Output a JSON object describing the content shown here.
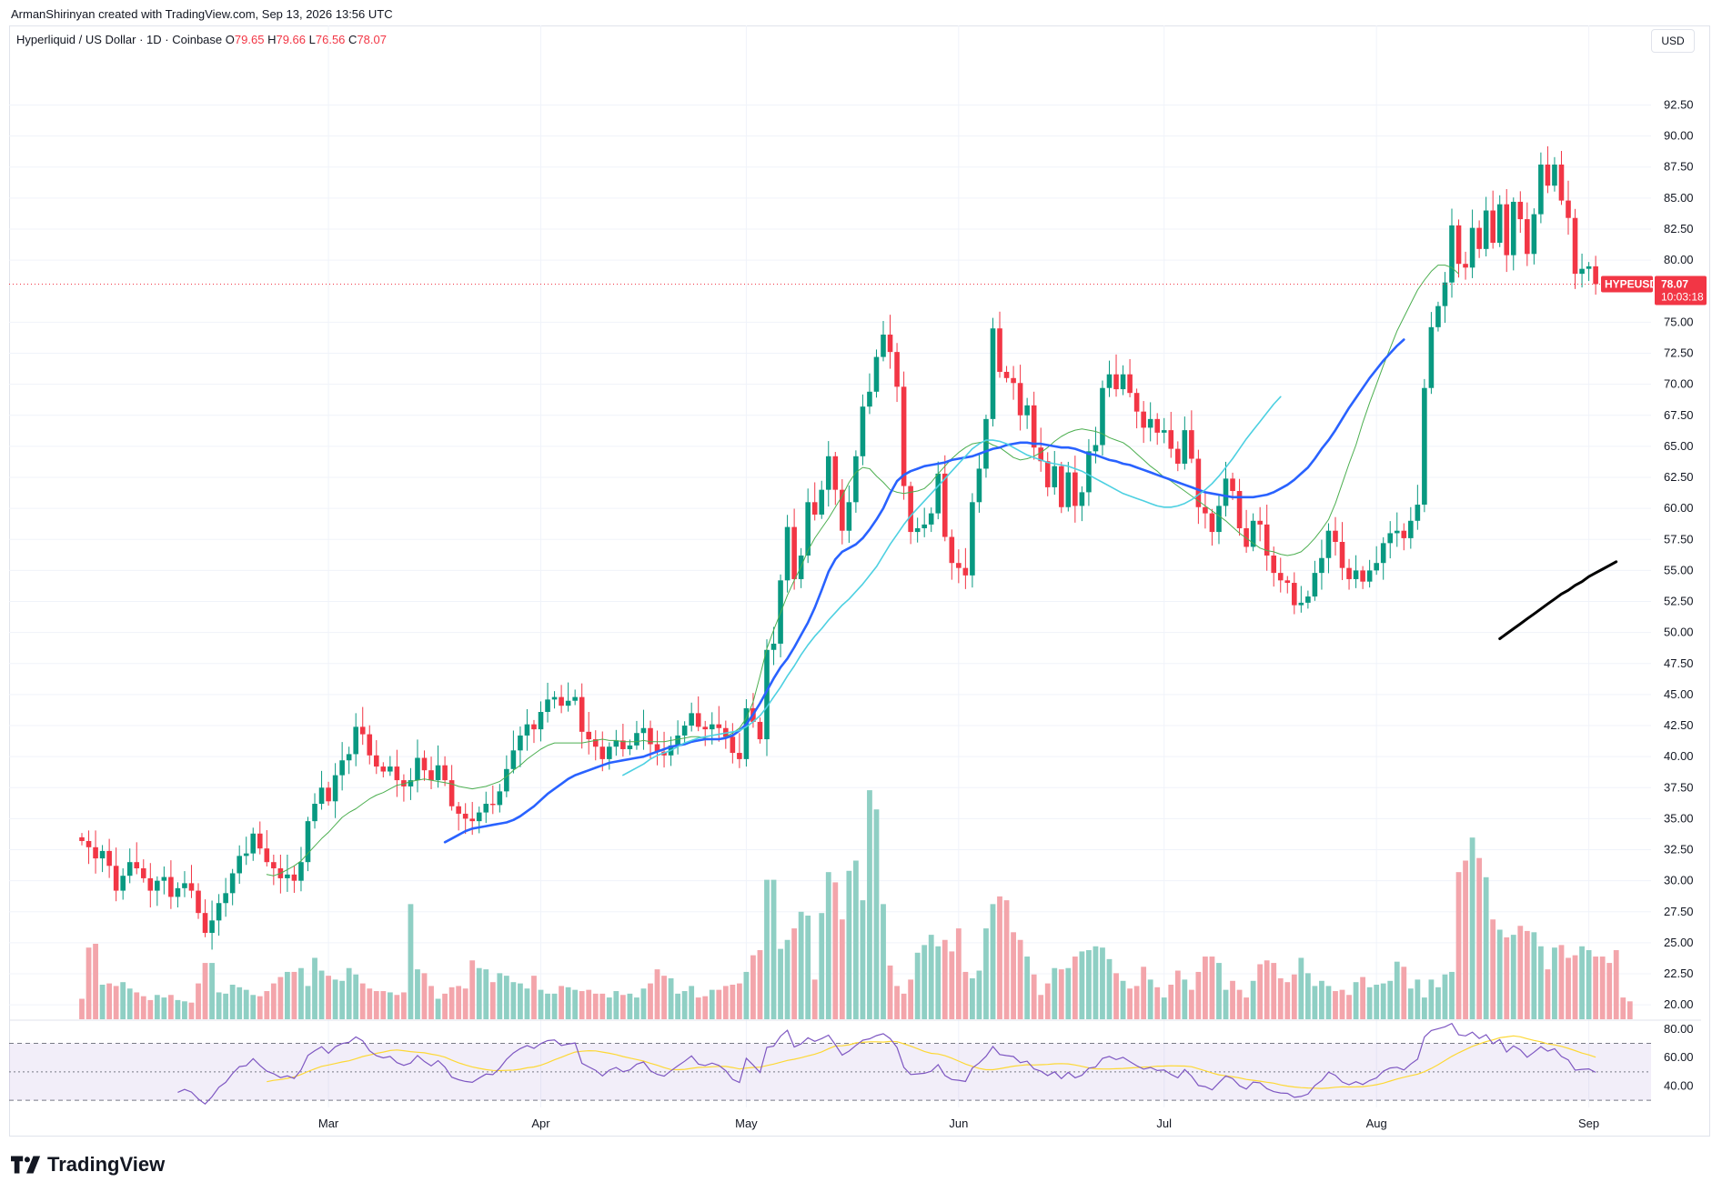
{
  "header": {
    "credit": "ArmanShirinyan created with TradingView.com, Sep 13, 2026 13:56 UTC",
    "symbol_desc": "Hyperliquid / US Dollar · 1D · Coinbase",
    "o_label": "O",
    "o_value": "79.65",
    "h_label": "H",
    "h_value": "79.66",
    "l_label": "L",
    "l_value": "76.56",
    "c_label": "C",
    "c_value": "78.07",
    "currency": "USD"
  },
  "price_tag": {
    "ticker": "HYPEUSD",
    "price": "78.07",
    "countdown": "10:03:18"
  },
  "footer": {
    "brand": "TradingView"
  },
  "colors": {
    "up": "#089981",
    "down": "#f23645",
    "vol_up": "#8fcfc4",
    "vol_down": "#f3a5ab",
    "ma_thin": "#4caf50",
    "ma_blue": "#2962ff",
    "ma_cyan": "#4dd0e1",
    "rsi": "#7e57c2",
    "rsi_ma": "#fdd835"
  },
  "chart_data": {
    "type": "candlestick",
    "price_axis": {
      "ticks": [
        "92.50",
        "90.00",
        "87.50",
        "85.00",
        "82.50",
        "80.00",
        "75.00",
        "72.50",
        "70.00",
        "67.50",
        "65.00",
        "62.50",
        "60.00",
        "57.50",
        "55.00",
        "52.50",
        "50.00",
        "47.50",
        "45.00",
        "42.50",
        "40.00",
        "37.50",
        "35.00",
        "32.50",
        "30.00",
        "27.50",
        "25.00",
        "22.50",
        "20.00"
      ],
      "range": [
        19.5,
        94
      ]
    },
    "rsi_axis": {
      "ticks": [
        "80.00",
        "60.00",
        "40.00"
      ],
      "band": [
        30,
        70
      ],
      "range": [
        25,
        85
      ]
    },
    "time_axis": [
      {
        "label": "Mar",
        "index": 36
      },
      {
        "label": "Apr",
        "index": 67
      },
      {
        "label": "May",
        "index": 97
      },
      {
        "label": "Jun",
        "index": 128
      },
      {
        "label": "Jul",
        "index": 158
      },
      {
        "label": "Aug",
        "index": 189
      },
      {
        "label": "Sep",
        "index": 220
      }
    ],
    "last_close": 78.07,
    "closes": [
      33.2,
      32.7,
      31.8,
      32.4,
      31.2,
      29.2,
      30.4,
      31.5,
      31.0,
      30.2,
      29.2,
      30.0,
      30.3,
      28.7,
      29.4,
      29.8,
      29.2,
      27.4,
      25.8,
      26.8,
      28.2,
      29.0,
      30.6,
      32.0,
      32.2,
      33.8,
      32.6,
      31.5,
      31.0,
      30.2,
      30.5,
      30.0,
      31.5,
      34.8,
      36.2,
      37.5,
      36.4,
      38.5,
      39.7,
      40.2,
      42.4,
      41.8,
      40.1,
      39.2,
      38.8,
      39.2,
      38.1,
      37.6,
      38.1,
      39.9,
      38.9,
      38.1,
      39.3,
      38.1,
      36.0,
      35.4,
      35.0,
      34.8,
      35.5,
      36.2,
      36.1,
      37.2,
      39.0,
      40.5,
      41.7,
      42.6,
      42.2,
      43.6,
      44.6,
      44.8,
      44.1,
      44.5,
      44.8,
      42.0,
      41.4,
      40.8,
      39.8,
      40.8,
      41.3,
      40.6,
      40.9,
      41.9,
      42.3,
      41.0,
      40.4,
      40.1,
      40.9,
      41.7,
      42.5,
      43.5,
      42.4,
      42.2,
      42.6,
      42.3,
      41.6,
      40.3,
      39.8,
      43.9,
      42.8,
      41.4,
      48.6,
      49.1,
      54.2,
      58.5,
      54.3,
      56.2,
      60.5,
      59.5,
      61.5,
      64.2,
      61.5,
      58.2,
      60.5,
      64.2,
      68.2,
      69.4,
      72.2,
      74.0,
      72.6,
      69.8,
      61.8,
      58.1,
      58.4,
      58.7,
      59.6,
      62.8,
      57.7,
      55.6,
      55.2,
      54.6,
      60.5,
      63.2,
      67.2,
      74.5,
      71.0,
      70.5,
      70.1,
      67.5,
      68.3,
      64.9,
      63.8,
      61.7,
      63.4,
      60.1,
      62.9,
      60.2,
      61.3,
      64.6,
      65.1,
      69.7,
      70.8,
      69.6,
      70.8,
      69.3,
      67.8,
      66.5,
      67.2,
      66.1,
      66.3,
      64.8,
      63.6,
      66.3,
      64.0,
      60.1,
      59.6,
      58.1,
      60.2,
      62.4,
      61.4,
      58.4,
      56.9,
      59.0,
      58.7,
      56.2,
      54.8,
      54.2,
      54.0,
      52.2,
      52.4,
      52.9,
      54.8,
      56.0,
      58.2,
      57.3,
      55.2,
      54.3,
      55.0,
      54.1,
      55.0,
      55.6,
      57.2,
      58.0,
      58.2,
      57.6,
      59.0,
      60.3,
      69.7,
      74.6,
      76.3,
      78.2,
      82.8,
      79.7,
      79.4,
      82.6,
      80.9,
      84.0,
      81.4,
      84.5,
      80.4,
      84.7,
      83.3,
      80.5,
      83.7,
      87.7,
      86.0,
      87.7,
      84.8,
      83.4,
      78.9,
      79.3,
      79.5,
      78.07
    ],
    "volumes": [
      20.8,
      24.8,
      25.1,
      21.9,
      22.0,
      21.8,
      22.1,
      21.6,
      21.3,
      21.0,
      20.7,
      21.1,
      20.9,
      21.1,
      20.7,
      20.6,
      20.5,
      22.0,
      23.6,
      23.6,
      21.3,
      21.2,
      21.9,
      21.7,
      21.5,
      21.1,
      21.0,
      21.4,
      22.0,
      22.5,
      22.9,
      22.9,
      23.2,
      21.8,
      24.0,
      23.0,
      22.6,
      22.3,
      22.2,
      23.2,
      22.7,
      22.0,
      21.6,
      21.4,
      21.4,
      21.3,
      21.1,
      21.3,
      28.2,
      23.1,
      22.8,
      21.8,
      20.8,
      21.2,
      21.7,
      21.8,
      21.6,
      23.8,
      23.2,
      23.1,
      22.1,
      22.8,
      22.6,
      22.1,
      22.0,
      21.6,
      22.6,
      21.5,
      21.2,
      21.2,
      21.8,
      21.7,
      21.5,
      21.4,
      21.5,
      21.2,
      21.2,
      20.9,
      21.4,
      21.1,
      21.2,
      20.9,
      21.6,
      22.0,
      23.1,
      22.6,
      22.4,
      21.2,
      21.4,
      21.8,
      20.9,
      21.0,
      21.5,
      21.5,
      21.8,
      21.9,
      22.0,
      22.9,
      24.2,
      24.6,
      30.1,
      30.1,
      24.7,
      25.4,
      26.3,
      27.6,
      27.3,
      22.3,
      27.5,
      30.7,
      29.9,
      27.0,
      30.8,
      31.6,
      28.5,
      37.1,
      35.6,
      28.2,
      23.4,
      21.8,
      21.2,
      22.3,
      24.4,
      25.0,
      25.8,
      24.9,
      25.4,
      24.5,
      26.3,
      22.9,
      22.4,
      23.0,
      26.3,
      28.2,
      28.8,
      28.5,
      26.0,
      25.4,
      24.1,
      22.7,
      21.1,
      22.0,
      23.2,
      23.1,
      23.2,
      24.1,
      24.5,
      24.6,
      24.9,
      24.8,
      23.9,
      22.8,
      22.2,
      21.6,
      21.8,
      23.3,
      22.3,
      21.7,
      20.9,
      21.9,
      23.0,
      22.3,
      21.5,
      22.9,
      24.1,
      24.1,
      23.6,
      21.5,
      22.2,
      21.5,
      20.9,
      22.2,
      23.5,
      23.8,
      23.6,
      22.4,
      22.1,
      22.7,
      24.0,
      22.8,
      21.8,
      22.2,
      21.8,
      21.4,
      21.5,
      21.1,
      22.1,
      22.5,
      21.7,
      21.9,
      22.0,
      22.2,
      23.7,
      23.3,
      21.6,
      22.3,
      20.9,
      22.3,
      21.7,
      22.7,
      22.9,
      30.7,
      31.6,
      33.4,
      31.8,
      30.3,
      27.0,
      26.2,
      25.6,
      25.8,
      26.5,
      26.1,
      26.0,
      24.9,
      23.1,
      24.8,
      25.0,
      24.0,
      24.2,
      24.9,
      24.6,
      24.1,
      24.1,
      23.6,
      24.6,
      20.9,
      20.6
    ],
    "series": [
      {
        "name": "",
        "color": "#4caf50",
        "start_index": 27,
        "values": [
          30.5,
          30.4,
          30.6,
          30.9,
          31.2,
          31.6,
          32.2,
          32.8,
          33.4,
          33.9,
          34.5,
          35.1,
          35.5,
          35.8,
          36.2,
          36.6,
          36.9,
          37.1,
          37.4,
          37.7,
          37.8,
          38.0,
          38.1,
          38.2,
          38.1,
          38.0,
          37.9,
          37.8,
          37.6,
          37.5,
          37.4,
          37.5,
          37.6,
          37.8,
          38.0,
          38.4,
          38.9,
          39.3,
          39.8,
          40.2,
          40.6,
          40.9,
          41.1,
          41.1,
          41.1,
          41.1,
          41.1,
          41.2,
          41.3,
          41.4,
          41.3,
          41.3,
          41.2,
          41.2,
          41.2,
          41.3,
          41.2,
          41.2,
          41.2,
          41.3,
          41.4,
          41.5,
          41.6,
          41.6,
          41.5,
          41.4,
          41.4,
          41.6,
          41.9,
          42.3,
          43.1,
          44.4,
          46.5,
          48.7,
          50.2,
          51.6,
          53.0,
          54.2,
          55.3,
          56.6,
          57.6,
          58.4,
          59.2,
          60.1,
          61.0,
          62.1,
          62.9,
          63.3,
          63.2,
          62.6,
          62.1,
          61.5,
          61.3,
          61.2,
          61.3,
          61.4,
          61.6,
          62.1,
          62.8,
          63.4,
          64.0,
          64.5,
          64.9,
          65.2,
          65.3,
          65.4,
          65.1,
          64.9,
          64.5,
          64.1,
          63.9,
          64.0,
          64.2,
          64.5,
          64.9,
          65.4,
          65.8,
          66.1,
          66.3,
          66.4,
          66.3,
          66.2,
          66.0,
          65.7,
          65.5,
          65.3,
          64.9,
          64.4,
          63.9,
          63.4,
          63.0,
          62.5,
          62.2,
          61.8,
          61.4,
          61.0,
          60.6,
          60.2,
          59.8,
          59.4,
          59.0,
          58.5,
          58.0,
          57.6,
          57.2,
          56.8,
          56.6,
          56.5,
          56.3,
          56.2,
          56.3,
          56.5,
          57.0,
          57.6,
          58.3,
          59.1,
          60.4,
          62.0,
          63.6,
          65.1,
          66.9,
          68.5,
          70.0,
          71.5,
          72.9,
          74.3,
          75.4,
          76.5,
          77.6,
          78.4,
          79.1,
          79.6,
          79.6,
          79.4,
          78.9
        ]
      },
      {
        "name": "",
        "color": "#2962ff",
        "start_index": 53,
        "values": [
          33.1,
          33.4,
          33.7,
          34.0,
          34.2,
          34.3,
          34.4,
          34.5,
          34.6,
          34.7,
          34.9,
          35.2,
          35.6,
          36.0,
          36.5,
          37.0,
          37.4,
          37.8,
          38.2,
          38.5,
          38.7,
          38.9,
          39.1,
          39.3,
          39.5,
          39.6,
          39.7,
          39.8,
          39.9,
          40.0,
          40.2,
          40.4,
          40.6,
          40.8,
          40.9,
          41.0,
          41.2,
          41.3,
          41.4,
          41.4,
          41.4,
          41.5,
          41.7,
          42.1,
          42.6,
          43.4,
          44.3,
          45.3,
          46.3,
          47.2,
          47.9,
          48.8,
          49.8,
          50.8,
          52.0,
          53.4,
          54.9,
          55.9,
          56.5,
          56.8,
          57.1,
          57.6,
          58.3,
          59.1,
          60.0,
          61.2,
          62.2,
          62.7,
          63.0,
          63.2,
          63.4,
          63.5,
          63.6,
          63.7,
          63.9,
          64.0,
          64.1,
          64.2,
          64.4,
          64.6,
          64.8,
          64.9,
          65.1,
          65.2,
          65.3,
          65.3,
          65.2,
          65.2,
          65.1,
          65.0,
          64.9,
          64.9,
          64.8,
          64.6,
          64.4,
          64.3,
          64.1,
          63.9,
          63.8,
          63.6,
          63.5,
          63.3,
          63.1,
          62.9,
          62.7,
          62.5,
          62.3,
          62.1,
          61.9,
          61.7,
          61.5,
          61.3,
          61.2,
          61.1,
          61.0,
          60.9,
          60.9,
          60.9,
          60.9,
          61.0,
          61.1,
          61.3,
          61.6,
          61.9,
          62.3,
          62.8,
          63.3,
          64.0,
          64.8,
          65.5,
          66.3,
          67.2,
          68.1,
          68.9,
          69.7,
          70.5,
          71.2,
          71.9,
          72.5,
          73.1,
          73.6
        ]
      },
      {
        "name": "",
        "color": "#4dd0e1",
        "start_index": 79,
        "values": [
          38.5,
          38.8,
          39.1,
          39.4,
          39.8,
          40.1,
          40.3,
          40.5,
          40.8,
          41.1,
          41.3,
          41.5,
          41.6,
          41.7,
          41.8,
          41.9,
          42.0,
          42.1,
          42.4,
          42.8,
          43.3,
          44.0,
          44.8,
          45.6,
          46.5,
          47.3,
          48.2,
          49.0,
          49.7,
          50.3,
          51.0,
          51.6,
          52.2,
          52.7,
          53.3,
          53.9,
          54.6,
          55.3,
          56.2,
          57.1,
          57.9,
          58.7,
          59.4,
          60.0,
          60.6,
          61.2,
          61.8,
          62.4,
          63.0,
          63.6,
          64.2,
          64.8,
          65.2,
          65.5,
          65.5,
          65.4,
          65.2,
          64.9,
          64.6,
          64.3,
          64.1,
          63.9,
          63.7,
          63.6,
          63.5,
          63.4,
          63.2,
          63.0,
          62.7,
          62.4,
          62.1,
          61.8,
          61.5,
          61.2,
          61.0,
          60.8,
          60.6,
          60.4,
          60.2,
          60.1,
          60.1,
          60.2,
          60.4,
          60.7,
          61.1,
          61.5,
          62.0,
          62.6,
          63.3,
          64.0,
          64.8,
          65.6,
          66.3,
          67.0,
          67.7,
          68.4,
          69.0
        ]
      },
      {
        "name": "",
        "color": "#000000",
        "start_index": 207,
        "values": [
          49.5,
          49.9,
          50.3,
          50.7,
          51.1,
          51.5,
          51.9,
          52.3,
          52.7,
          53.1,
          53.4,
          53.8,
          54.1,
          54.5,
          54.8,
          55.1,
          55.4,
          55.7
        ]
      }
    ]
  }
}
